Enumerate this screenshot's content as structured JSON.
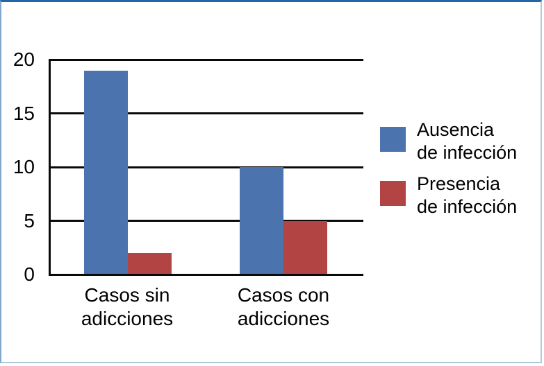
{
  "frame": {
    "background": "#ffffff",
    "border_top_color": "#2167a8",
    "border_left_color": "#7fa8cc",
    "border_right_color": "#afc9de",
    "border_bottom_color": "#afc9de"
  },
  "chart_data": {
    "type": "bar",
    "title": "",
    "xlabel": "",
    "ylabel": "",
    "categories": [
      "Casos sin adicciones",
      "Casos con adicciones"
    ],
    "category_lines": [
      [
        "Casos sin",
        "adicciones"
      ],
      [
        "Casos con",
        "adicciones"
      ]
    ],
    "series": [
      {
        "name": "Ausencia de infección",
        "name_lines": [
          "Ausencia",
          "de infección"
        ],
        "color": "#4B73AD",
        "values": [
          19,
          10
        ]
      },
      {
        "name": "Presencia de infección",
        "name_lines": [
          "Presencia",
          "de infección"
        ],
        "color": "#B34444",
        "values": [
          2,
          5
        ]
      }
    ],
    "ylim": [
      0,
      20
    ],
    "yticks": [
      0,
      5,
      10,
      15,
      20
    ],
    "grid": true,
    "gridline_color": "#0a0a0a",
    "legend_position": "right"
  }
}
